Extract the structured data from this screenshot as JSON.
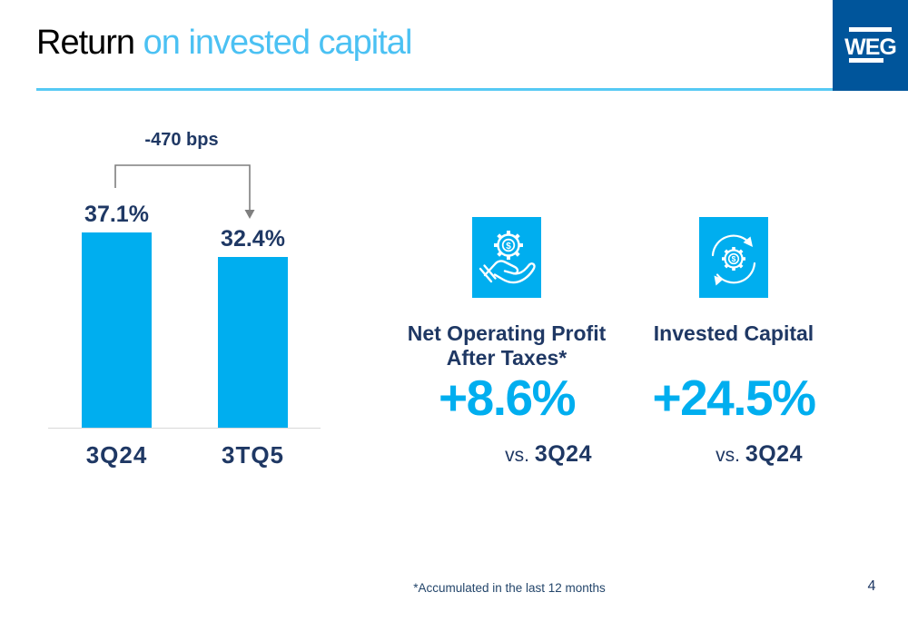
{
  "slide": {
    "title": {
      "primary": "Return",
      "secondary": " on invested capital"
    },
    "logo_text": "WEG",
    "footnote": "*Accumulated in the last 12 months",
    "page_number": "4"
  },
  "chart_data": {
    "type": "bar",
    "title": "Return on invested capital",
    "categories": [
      "3Q24",
      "3TQ5"
    ],
    "values": [
      37.1,
      32.4
    ],
    "value_labels": [
      "37.1%",
      "32.4%"
    ],
    "delta_label": "-470 bps",
    "bar_color": "#00AEEF",
    "ylim": [
      0,
      40
    ],
    "grid": false,
    "legend": false
  },
  "kpis": [
    {
      "icon": "hand-gear-dollar-icon",
      "title_line1": "Net Operating Profit",
      "title_line2": "After Taxes*",
      "value": "+8.6%",
      "vs_prefix": "vs. ",
      "vs_period": "3Q24"
    },
    {
      "icon": "gear-dollar-cycle-icon",
      "title_line1": "Invested Capital",
      "title_line2": "",
      "value": "+24.5%",
      "vs_prefix": "vs. ",
      "vs_period": "3Q24"
    }
  ],
  "colors": {
    "accent_cyan": "#00AEEF",
    "navy": "#1F3864",
    "title_blue": "#1565B1",
    "title_light_blue": "#4BC1F3",
    "logo_blue": "#00559B",
    "connector_gray": "#7F7F7F",
    "baseline_gray": "#D9D9D9"
  }
}
